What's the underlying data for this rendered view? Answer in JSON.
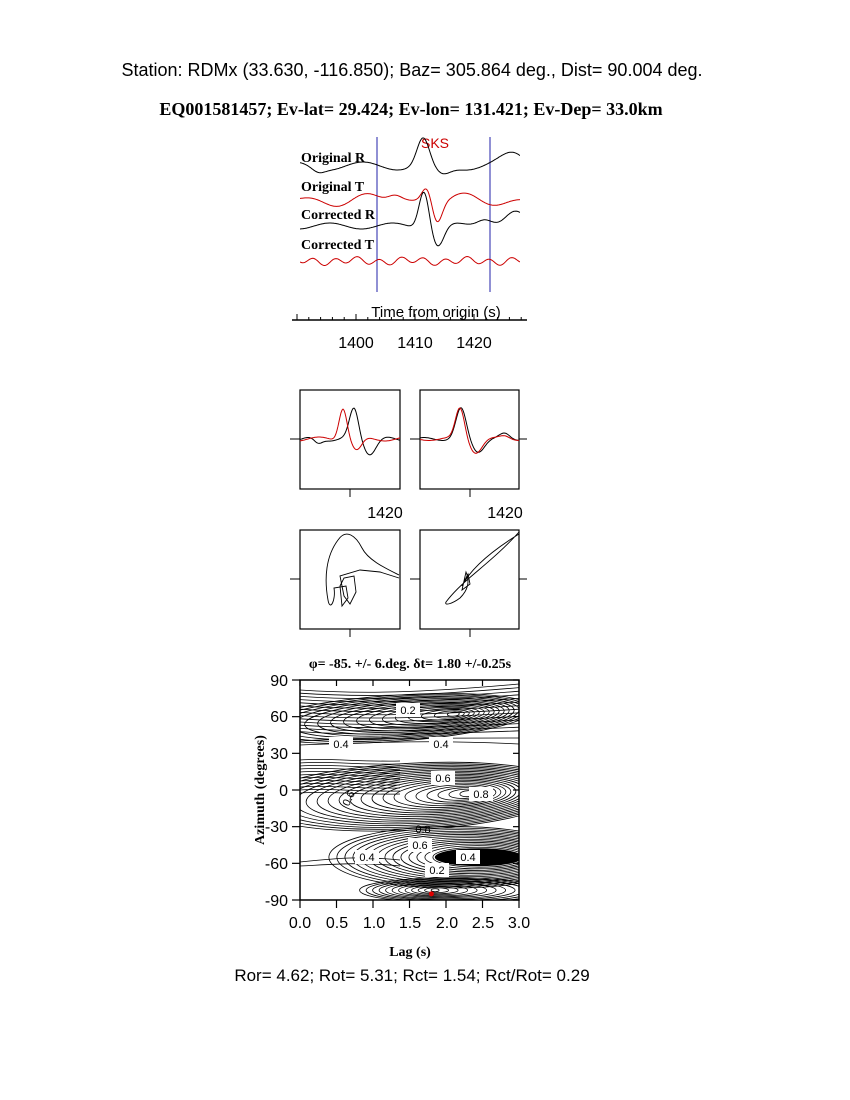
{
  "header": {
    "station_line": "Station: RDMx (33.630, -116.850); Baz=  305.864 deg., Dist=   90.004 deg.",
    "event_line": "EQ001581457; Ev-lat=  29.424; Ev-lon= 131.421; Ev-Dep= 33.0km"
  },
  "waveforms": {
    "phase_label": "SKS",
    "trace_labels": [
      "Original R",
      "Original T",
      "Corrected R",
      "Corrected T"
    ],
    "axis_title": "Time from origin (s)",
    "ticks": [
      "1400",
      "1410",
      "1420"
    ]
  },
  "overlay_panels": {
    "tick_label": "1420"
  },
  "contour_plot": {
    "title": "φ= -85. +/- 6.deg. δt= 1.80 +/-0.25s",
    "xlabel": "Lag (s)",
    "ylabel": "Azimuth (degrees)",
    "xticks": [
      "0.0",
      "0.5",
      "1.0",
      "1.5",
      "2.0",
      "2.5",
      "3.0"
    ],
    "yticks": [
      "90",
      "60",
      "30",
      "0",
      "-30",
      "-60",
      "-90"
    ],
    "contour_labels": [
      "0.2",
      "0.4",
      "0.4",
      "0.6",
      "0.6",
      "0.8",
      "0.8",
      "0.4",
      "0.6",
      "0.4",
      "0.2"
    ]
  },
  "chart_data": {
    "type": "heatmap",
    "title": "φ= -85. +/- 6.deg. δt= 1.80 +/-0.25s",
    "xlabel": "Lag (s)",
    "ylabel": "Azimuth (degrees)",
    "xlim": [
      0,
      3
    ],
    "ylim": [
      -90,
      90
    ],
    "best_fit": {
      "lag_s": 1.8,
      "azimuth_deg": -85
    },
    "time_window_s": [
      1403.5,
      1423.5
    ],
    "phase_time_s": 1412,
    "colors": {
      "fast_component": "#000000",
      "slow_component": "#cc0000",
      "window": "#2222aa",
      "marker": "#dd0000"
    }
  },
  "footer": {
    "stats": "Ror= 4.62; Rot= 5.31; Rct= 1.54; Rct/Rot= 0.29"
  }
}
